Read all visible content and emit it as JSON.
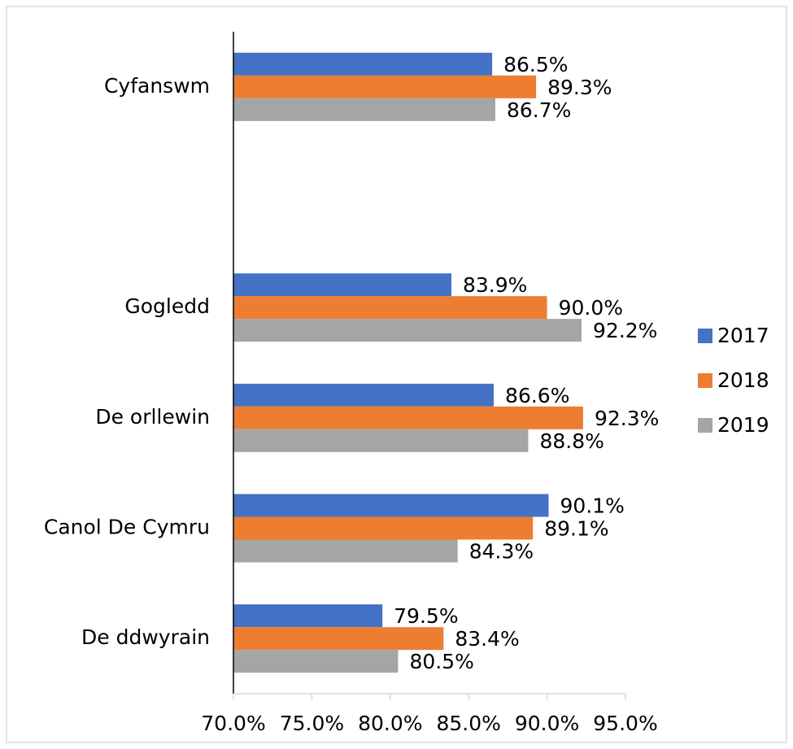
{
  "chart_data": {
    "type": "bar",
    "orientation": "horizontal",
    "categories": [
      "Cyfanswm",
      null,
      "Gogledd",
      "De orllewin",
      "Canol De Cymru",
      "De ddwyrain"
    ],
    "series": [
      {
        "name": "2017",
        "color": "#4472c4",
        "values": [
          86.5,
          null,
          83.9,
          86.6,
          90.1,
          79.5
        ],
        "value_labels": [
          "86.5%",
          null,
          "83.9%",
          "86.6%",
          "90.1%",
          "79.5%"
        ]
      },
      {
        "name": "2018",
        "color": "#ed7d31",
        "values": [
          89.3,
          null,
          90.0,
          92.3,
          89.1,
          83.4
        ],
        "value_labels": [
          "89.3%",
          null,
          "90.0%",
          "92.3%",
          "89.1%",
          "83.4%"
        ]
      },
      {
        "name": "2019",
        "color": "#a5a5a5",
        "values": [
          86.7,
          null,
          92.2,
          88.8,
          84.3,
          80.5
        ],
        "value_labels": [
          "86.7%",
          null,
          "92.2%",
          "88.8%",
          "84.3%",
          "80.5%"
        ]
      }
    ],
    "xlim": [
      70,
      95
    ],
    "xticks": [
      {
        "value": 70,
        "label": "70.0%"
      },
      {
        "value": 75,
        "label": "75.0%"
      },
      {
        "value": 80,
        "label": "80.0%"
      },
      {
        "value": 85,
        "label": "85.0%"
      },
      {
        "value": 90,
        "label": "90.0%"
      },
      {
        "value": 95,
        "label": "95.0%"
      }
    ],
    "legend": "right"
  }
}
